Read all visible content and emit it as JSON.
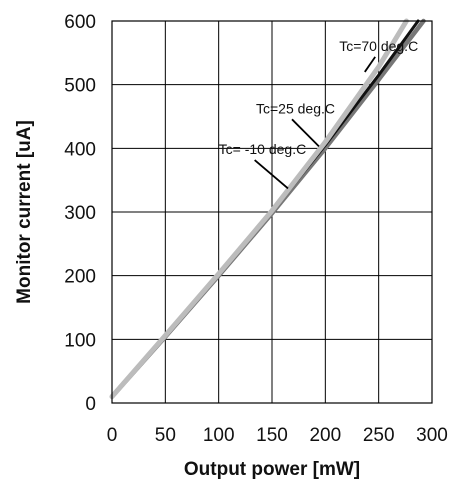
{
  "chart_data": {
    "type": "line",
    "title": "",
    "xlabel": "Output power [mW]",
    "ylabel": "Monitor current [uA]",
    "xlim": [
      0,
      300
    ],
    "ylim": [
      0,
      600
    ],
    "xticks": [
      0,
      50,
      100,
      150,
      200,
      250,
      300
    ],
    "yticks": [
      0,
      100,
      200,
      300,
      400,
      500,
      600
    ],
    "grid": true,
    "legend": "none",
    "series": [
      {
        "name": "Tc= -10 deg.C",
        "color": "#bcbcbc",
        "x": [
          0,
          50,
          100,
          150,
          200,
          250,
          276
        ],
        "y": [
          10,
          106,
          203,
          302,
          410,
          528,
          600
        ]
      },
      {
        "name": "Tc=25 deg.C",
        "color": "#111111",
        "x": [
          0,
          50,
          100,
          150,
          200,
          250,
          287
        ],
        "y": [
          12,
          107,
          204,
          301,
          405,
          515,
          600
        ]
      },
      {
        "name": "Tc=70 deg.C",
        "color": "#777777",
        "x": [
          0,
          50,
          100,
          150,
          200,
          250,
          292
        ],
        "y": [
          10,
          104,
          200,
          298,
          400,
          508,
          600
        ]
      }
    ],
    "annotations": [
      {
        "text": "Tc=70 deg.C",
        "target_series": 2,
        "target": [
          237,
          520
        ],
        "label_at": [
          213,
          553
        ]
      },
      {
        "text": "Tc=25 deg.C",
        "target_series": 1,
        "target": [
          194,
          403
        ],
        "label_at": [
          135,
          455
        ]
      },
      {
        "text": "Tc= -10 deg.C",
        "target_series": 0,
        "target": [
          165,
          337
        ],
        "label_at": [
          100,
          391
        ]
      }
    ]
  }
}
